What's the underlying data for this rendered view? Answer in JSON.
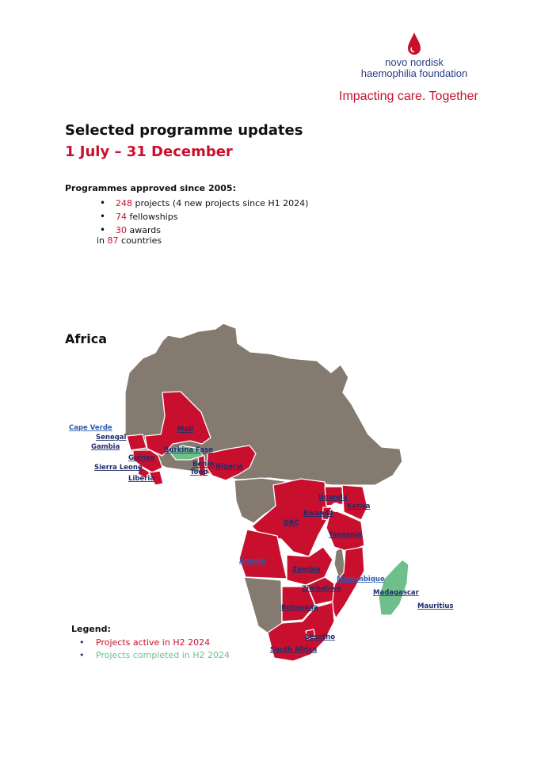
{
  "header": {
    "logo_line1": "novo nordisk",
    "logo_line2": "haemophilia foundation",
    "tagline": "Impacting care. Together"
  },
  "title": "Selected programme updates",
  "subtitle": "1 July – 31 December",
  "summary": {
    "heading": "Programmes approved since 2005:",
    "projects_count": "248",
    "projects_text": " projects (4 new projects since H1 2024)",
    "fellowships_count": "74",
    "fellowships_text": " fellowships",
    "awards_count": "30",
    "awards_text": " awards",
    "countries_prefix": "in ",
    "countries_count": "87",
    "countries_text": " countries"
  },
  "region": "Africa",
  "map_labels": {
    "cape_verde": "Cape Verde",
    "senegal": "Senegal",
    "gambia": "Gambia",
    "mali": "Mali",
    "guinea": "Guinea",
    "burkina_faso": "Burkina Faso",
    "sierra_leone": "Sierra Leone",
    "liberia": "Liberia",
    "benin": "Benin",
    "togo": "Togo",
    "nigeria": "Nigeria",
    "uganda": "Uganda",
    "kenya": "Kenya",
    "rwanda": "Rwanda",
    "drc": "DRC",
    "tanzania": "Tanzania",
    "angola": "Angola",
    "zambia": "Zambia",
    "mozambique": "Mozambique",
    "zimbabwe": "Zimbabwe",
    "madagascar": "Madagascar",
    "mauritius": "Mauritius",
    "botswana": "Botswana",
    "lesotho": "Lesotho",
    "south_africa": "South Africa"
  },
  "legend": {
    "heading": "Legend:",
    "active": "Projects active in H2 2024",
    "completed": "Projects completed in H2 2024"
  },
  "colors": {
    "active": "#c8102e",
    "completed": "#6fbf8a",
    "other": "#857a70",
    "brand_blue": "#2a3f86"
  }
}
